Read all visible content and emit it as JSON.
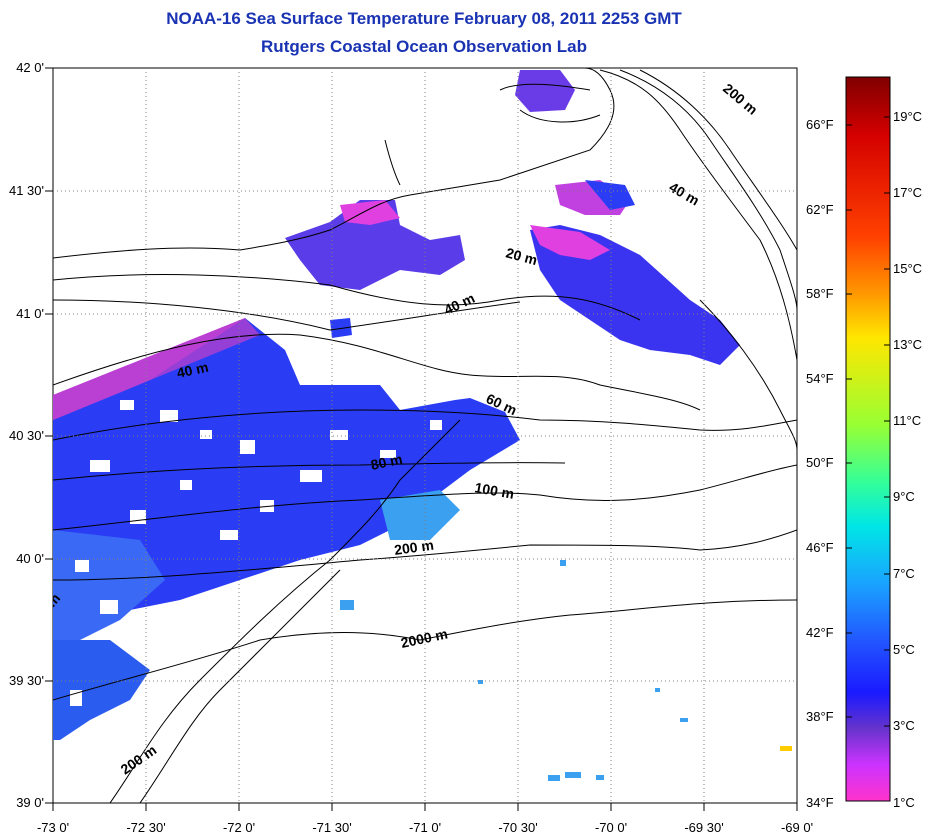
{
  "header": {
    "title": "NOAA-16 Sea Surface Temperature February 08, 2011 2253 GMT",
    "subtitle": "Rutgers Coastal Ocean Observation Lab"
  },
  "map": {
    "lat_labels": [
      "42 0'",
      "41 30'",
      "41 0'",
      "40 30'",
      "40 0'",
      "39 30'",
      "39 0'"
    ],
    "lon_labels": [
      "-73 0'",
      "-72 30'",
      "-72 0'",
      "-71 30'",
      "-71 0'",
      "-70 30'",
      "-70 0'",
      "-69 30'",
      "-69 0'"
    ],
    "contour_labels": [
      "200 m",
      "40 m",
      "20 m",
      "40 m",
      "40 m",
      "60 m",
      "80 m",
      "100 m",
      "200 m",
      "2000 m",
      "200 m",
      "m"
    ],
    "colors": {
      "ocean_warm": "#1f3bff",
      "ocean_cool": "#7a3bff",
      "coastal": "#ff33cc",
      "shelf": "#3399ff",
      "contour": "#000000",
      "grid": "#808080"
    }
  },
  "colorbar": {
    "celsius_labels": [
      "19°C",
      "17°C",
      "15°C",
      "13°C",
      "11°C",
      "9°C",
      "7°C",
      "5°C",
      "3°C",
      "1°C"
    ],
    "fahrenheit_labels": [
      "66°F",
      "62°F",
      "58°F",
      "54°F",
      "50°F",
      "46°F",
      "42°F",
      "38°F",
      "34°F"
    ],
    "gradient_top_to_bottom": [
      "#800000",
      "#d40000",
      "#ff4000",
      "#ff9900",
      "#ffe600",
      "#99ff33",
      "#33ff99",
      "#00e6e6",
      "#1aa3ff",
      "#2255ff",
      "#1a1aff",
      "#6633cc",
      "#cc33ff",
      "#ff33cc"
    ]
  }
}
